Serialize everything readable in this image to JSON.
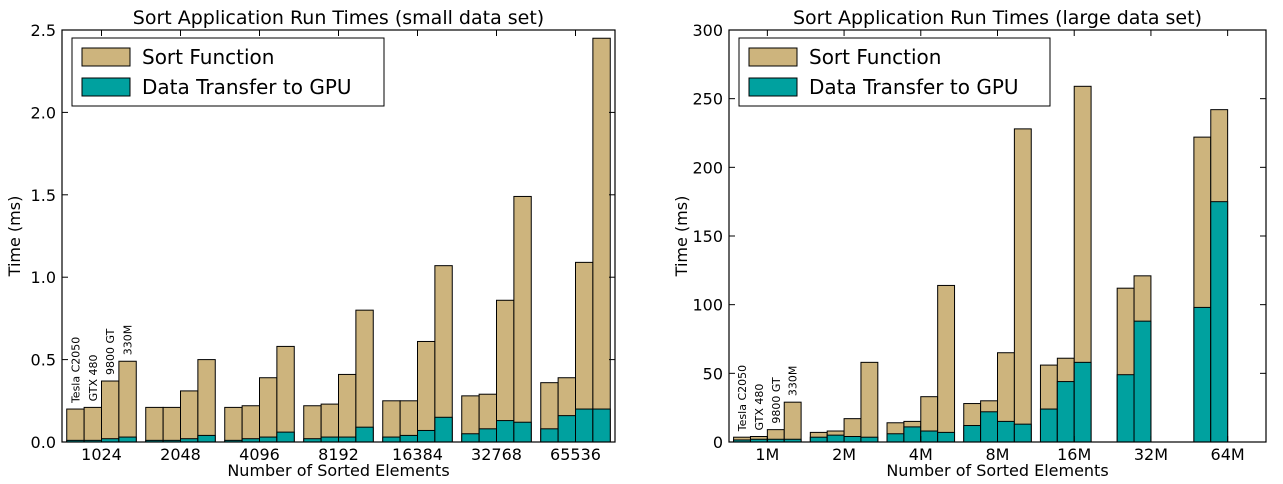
{
  "colors": {
    "sort_function": "#cdb47d",
    "data_transfer": "#00a19f",
    "edge": "#000000"
  },
  "chart_data": [
    {
      "type": "bar",
      "stacked": true,
      "title": "Sort Application Run Times (small data set)",
      "xlabel": "Number of Sorted Elements",
      "ylabel": "Time (ms)",
      "ylim": [
        0,
        2.5
      ],
      "yticks": [
        "0.0",
        "0.5",
        "1.0",
        "1.5",
        "2.0",
        "2.5"
      ],
      "categories": [
        "1024",
        "2048",
        "4096",
        "8192",
        "16384",
        "32768",
        "65536"
      ],
      "gpus": [
        "Tesla C2050",
        "GTX 480",
        "9800 GT",
        "330M"
      ],
      "legend_position": "top-left",
      "series": [
        {
          "name": "Sort Function",
          "values": [
            [
              0.2,
              0.21,
              0.37,
              0.49
            ],
            [
              0.21,
              0.21,
              0.31,
              0.5
            ],
            [
              0.21,
              0.22,
              0.39,
              0.58
            ],
            [
              0.22,
              0.23,
              0.41,
              0.8
            ],
            [
              0.25,
              0.25,
              0.61,
              1.07
            ],
            [
              0.28,
              0.29,
              0.86,
              1.49
            ],
            [
              0.36,
              0.39,
              1.09,
              2.45
            ]
          ]
        },
        {
          "name": "Data Transfer to GPU",
          "values": [
            [
              0.01,
              0.01,
              0.02,
              0.03
            ],
            [
              0.01,
              0.01,
              0.02,
              0.04
            ],
            [
              0.01,
              0.02,
              0.03,
              0.06
            ],
            [
              0.02,
              0.03,
              0.03,
              0.09
            ],
            [
              0.03,
              0.04,
              0.07,
              0.15
            ],
            [
              0.05,
              0.08,
              0.13,
              0.12
            ],
            [
              0.08,
              0.16,
              0.2,
              0.2
            ]
          ]
        }
      ]
    },
    {
      "type": "bar",
      "stacked": true,
      "title": "Sort Application Run Times (large data set)",
      "xlabel": "Number of Sorted Elements",
      "ylabel": "Time (ms)",
      "ylim": [
        0,
        300
      ],
      "yticks": [
        "0",
        "50",
        "100",
        "150",
        "200",
        "250",
        "300"
      ],
      "categories": [
        "1M",
        "2M",
        "4M",
        "8M",
        "16M",
        "32M",
        "64M"
      ],
      "gpus": [
        "Tesla C2050",
        "GTX 480",
        "9800 GT",
        "330M"
      ],
      "legend_position": "top-left",
      "series": [
        {
          "name": "Sort Function",
          "values": [
            [
              3.5,
              4.0,
              9.0,
              29.0
            ],
            [
              7.0,
              8.0,
              17.0,
              58.0
            ],
            [
              14.0,
              15.0,
              33.0,
              114.0
            ],
            [
              28.0,
              30.0,
              65.0,
              228.0
            ],
            [
              56.0,
              61.0,
              259.0,
              0.0
            ],
            [
              112.0,
              121.0,
              0.0,
              0.0
            ],
            [
              222.0,
              242.0,
              0.0,
              0.0
            ]
          ]
        },
        {
          "name": "Data Transfer to GPU",
          "values": [
            [
              1.5,
              2.0,
              2.0,
              2.0
            ],
            [
              3.5,
              5.0,
              4.0,
              3.5
            ],
            [
              6.0,
              11.0,
              8.0,
              7.0
            ],
            [
              12.0,
              22.0,
              15.0,
              13.0
            ],
            [
              24.0,
              44.0,
              58.0,
              0.0
            ],
            [
              49.0,
              88.0,
              0.0,
              0.0
            ],
            [
              98.0,
              175.0,
              0.0,
              0.0
            ]
          ]
        }
      ]
    }
  ]
}
